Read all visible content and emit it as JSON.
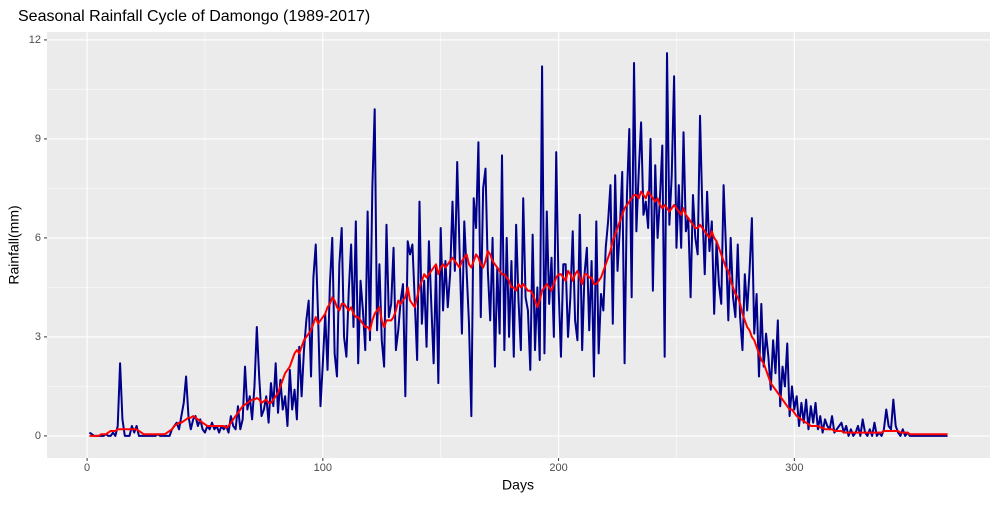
{
  "chart_data": {
    "type": "line",
    "title": "Seasonal Rainfall Cycle of Damongo (1989-2017)",
    "xlabel": "Days",
    "ylabel": "Rainfall(mm)",
    "xlim": [
      -17,
      383
    ],
    "ylim": [
      -0.67,
      12.24
    ],
    "xticks": [
      0,
      100,
      200,
      300
    ],
    "yticks": [
      0,
      3,
      6,
      9,
      12
    ],
    "grid": true,
    "x": [
      1,
      2,
      3,
      4,
      5,
      6,
      7,
      8,
      9,
      10,
      11,
      12,
      13,
      14,
      15,
      16,
      17,
      18,
      19,
      20,
      21,
      22,
      23,
      24,
      25,
      26,
      27,
      28,
      29,
      30,
      31,
      32,
      33,
      34,
      35,
      36,
      37,
      38,
      39,
      40,
      41,
      42,
      43,
      44,
      45,
      46,
      47,
      48,
      49,
      50,
      51,
      52,
      53,
      54,
      55,
      56,
      57,
      58,
      59,
      60,
      61,
      62,
      63,
      64,
      65,
      66,
      67,
      68,
      69,
      70,
      71,
      72,
      73,
      74,
      75,
      76,
      77,
      78,
      79,
      80,
      81,
      82,
      83,
      84,
      85,
      86,
      87,
      88,
      89,
      90,
      91,
      92,
      93,
      94,
      95,
      96,
      97,
      98,
      99,
      100,
      101,
      102,
      103,
      104,
      105,
      106,
      107,
      108,
      109,
      110,
      111,
      112,
      113,
      114,
      115,
      116,
      117,
      118,
      119,
      120,
      121,
      122,
      123,
      124,
      125,
      126,
      127,
      128,
      129,
      130,
      131,
      132,
      133,
      134,
      135,
      136,
      137,
      138,
      139,
      140,
      141,
      142,
      143,
      144,
      145,
      146,
      147,
      148,
      149,
      150,
      151,
      152,
      153,
      154,
      155,
      156,
      157,
      158,
      159,
      160,
      161,
      162,
      163,
      164,
      165,
      166,
      167,
      168,
      169,
      170,
      171,
      172,
      173,
      174,
      175,
      176,
      177,
      178,
      179,
      180,
      181,
      182,
      183,
      184,
      185,
      186,
      187,
      188,
      189,
      190,
      191,
      192,
      193,
      194,
      195,
      196,
      197,
      198,
      199,
      200,
      201,
      202,
      203,
      204,
      205,
      206,
      207,
      208,
      209,
      210,
      211,
      212,
      213,
      214,
      215,
      216,
      217,
      218,
      219,
      220,
      221,
      222,
      223,
      224,
      225,
      226,
      227,
      228,
      229,
      230,
      231,
      232,
      233,
      234,
      235,
      236,
      237,
      238,
      239,
      240,
      241,
      242,
      243,
      244,
      245,
      246,
      247,
      248,
      249,
      250,
      251,
      252,
      253,
      254,
      255,
      256,
      257,
      258,
      259,
      260,
      261,
      262,
      263,
      264,
      265,
      266,
      267,
      268,
      269,
      270,
      271,
      272,
      273,
      274,
      275,
      276,
      277,
      278,
      279,
      280,
      281,
      282,
      283,
      284,
      285,
      286,
      287,
      288,
      289,
      290,
      291,
      292,
      293,
      294,
      295,
      296,
      297,
      298,
      299,
      300,
      301,
      302,
      303,
      304,
      305,
      306,
      307,
      308,
      309,
      310,
      311,
      312,
      313,
      314,
      315,
      316,
      317,
      318,
      319,
      320,
      321,
      322,
      323,
      324,
      325,
      326,
      327,
      328,
      329,
      330,
      331,
      332,
      333,
      334,
      335,
      336,
      337,
      338,
      339,
      340,
      341,
      342,
      343,
      344,
      345,
      346,
      347,
      348,
      349,
      350,
      351,
      352,
      353,
      354,
      355,
      356,
      357,
      358,
      359,
      360,
      361,
      362,
      363,
      364,
      365
    ],
    "series": [
      {
        "color": "#00008B",
        "values": [
          0.1,
          0.05,
          0,
          0,
          0,
          0,
          0,
          0.05,
          0,
          0,
          0.1,
          0,
          0.3,
          2.2,
          0.5,
          0,
          0,
          0,
          0.3,
          0.1,
          0.3,
          0,
          0,
          0,
          0,
          0,
          0,
          0,
          0,
          0.05,
          0,
          0,
          0,
          0,
          0,
          0.2,
          0.3,
          0.4,
          0.2,
          0.6,
          1.0,
          1.8,
          0.6,
          0.2,
          0.5,
          0.6,
          0.3,
          0.5,
          0.2,
          0.1,
          0.3,
          0.2,
          0.4,
          0.2,
          0.3,
          0.1,
          0.3,
          0.2,
          0.3,
          0.1,
          0.6,
          0.3,
          0.2,
          0.9,
          0.2,
          0.5,
          2.1,
          0.8,
          1.2,
          0.5,
          1.5,
          3.3,
          1.8,
          0.6,
          0.8,
          1.2,
          0.4,
          1.6,
          0.9,
          2.2,
          0.7,
          1.7,
          0.8,
          1.2,
          0.3,
          2.0,
          0.8,
          1.4,
          0.5,
          2.7,
          1.2,
          2.6,
          3.5,
          4.1,
          1.8,
          4.8,
          5.8,
          3.6,
          0.9,
          2.2,
          3.7,
          2.0,
          4.6,
          6.0,
          2.5,
          1.8,
          5.2,
          6.3,
          3.0,
          2.4,
          4.4,
          5.8,
          3.3,
          6.5,
          2.2,
          4.7,
          3.8,
          2.6,
          6.8,
          2.9,
          7.5,
          9.9,
          3.2,
          5.2,
          2.9,
          2.1,
          6.4,
          3.6,
          4.0,
          5.7,
          2.6,
          3.2,
          4.1,
          4.6,
          1.2,
          5.9,
          5.5,
          5.8,
          4.1,
          2.3,
          7.1,
          3.4,
          4.7,
          2.7,
          5.9,
          4.0,
          2.2,
          5.1,
          1.6,
          6.3,
          3.8,
          5.3,
          3.9,
          4.9,
          7.1,
          5.0,
          8.3,
          5.6,
          3.1,
          6.5,
          5.0,
          3.4,
          0.6,
          7.2,
          6.3,
          8.9,
          3.6,
          7.5,
          8.1,
          5.0,
          3.5,
          6.0,
          2.1,
          5.1,
          3.1,
          8.5,
          2.6,
          6.0,
          3.0,
          5.3,
          2.4,
          6.4,
          4.1,
          2.6,
          7.2,
          4.2,
          3.8,
          2.0,
          6.1,
          2.6,
          4.5,
          2.3,
          11.2,
          2.5,
          6.8,
          4.0,
          5.4,
          3.0,
          8.6,
          4.5,
          2.4,
          5.2,
          5.2,
          3.0,
          4.2,
          6.2,
          3.5,
          2.9,
          6.7,
          2.6,
          4.9,
          5.7,
          3.2,
          5.3,
          1.8,
          6.5,
          2.5,
          4.3,
          3.8,
          5.7,
          6.5,
          7.6,
          3.4,
          7.9,
          5.0,
          6.3,
          8.0,
          2.2,
          7.3,
          9.3,
          4.2,
          11.3,
          6.2,
          8.0,
          9.5,
          6.7,
          7.1,
          6.3,
          9.0,
          4.4,
          8.2,
          6.0,
          7.2,
          8.8,
          2.4,
          11.6,
          6.4,
          7.9,
          10.9,
          5.7,
          7.6,
          5.7,
          9.2,
          6.2,
          6.6,
          4.2,
          7.3,
          6.0,
          5.5,
          9.7,
          6.8,
          4.9,
          7.4,
          5.6,
          6.5,
          3.7,
          5.9,
          4.6,
          4.0,
          7.6,
          5.7,
          3.5,
          6.0,
          4.2,
          3.6,
          5.8,
          3.6,
          2.6,
          4.9,
          3.8,
          5.0,
          6.6,
          3.1,
          4.3,
          1.8,
          4.0,
          2.1,
          3.1,
          2.4,
          1.4,
          2.9,
          1.9,
          3.5,
          0.9,
          2.1,
          1.5,
          2.8,
          0.6,
          1.5,
          0.8,
          1.2,
          0.3,
          1.0,
          0.4,
          1.1,
          0.2,
          0.9,
          0.4,
          1.0,
          0.2,
          0.6,
          0.1,
          0.5,
          0.3,
          0.2,
          0.6,
          0.1,
          0.2,
          0.3,
          0.4,
          0.1,
          0.3,
          0,
          0.2,
          0,
          0.1,
          0.3,
          0,
          0.5,
          0.1,
          0,
          0.2,
          0,
          0.4,
          0,
          0.1,
          0,
          0.2,
          0.8,
          0.3,
          0.2,
          1.1,
          0.3,
          0.1,
          0,
          0.2,
          0,
          0.1,
          0,
          0,
          0,
          0,
          0,
          0,
          0,
          0,
          0,
          0,
          0,
          0,
          0,
          0,
          0,
          0,
          0
        ]
      },
      {
        "color": "#FF0000",
        "values": [
          0,
          0,
          0,
          0,
          0,
          0.05,
          0.05,
          0.05,
          0.1,
          0.15,
          0.15,
          0.15,
          0.2,
          0.2,
          0.2,
          0.2,
          0.2,
          0.2,
          0.2,
          0.2,
          0.2,
          0.15,
          0.1,
          0.05,
          0.05,
          0.05,
          0.05,
          0.05,
          0.05,
          0.05,
          0.05,
          0.05,
          0.05,
          0.1,
          0.15,
          0.2,
          0.3,
          0.35,
          0.4,
          0.4,
          0.45,
          0.5,
          0.55,
          0.55,
          0.6,
          0.55,
          0.5,
          0.45,
          0.4,
          0.35,
          0.3,
          0.3,
          0.3,
          0.3,
          0.3,
          0.3,
          0.3,
          0.3,
          0.25,
          0.3,
          0.4,
          0.5,
          0.6,
          0.7,
          0.8,
          0.9,
          0.95,
          1.0,
          1.05,
          1.1,
          1.1,
          1.15,
          1.1,
          1.0,
          1.05,
          1.1,
          1.0,
          1.0,
          1.1,
          1.2,
          1.3,
          1.5,
          1.7,
          1.9,
          2.0,
          2.1,
          2.3,
          2.5,
          2.6,
          2.5,
          2.7,
          2.9,
          3.0,
          3.1,
          3.2,
          3.4,
          3.6,
          3.4,
          3.5,
          3.6,
          3.7,
          3.9,
          4.0,
          4.2,
          4.1,
          3.9,
          3.8,
          4.0,
          4.0,
          3.9,
          3.8,
          3.9,
          3.7,
          3.6,
          3.6,
          3.5,
          3.4,
          3.3,
          3.3,
          3.2,
          3.5,
          3.7,
          3.8,
          3.9,
          3.5,
          3.3,
          3.5,
          3.5,
          3.5,
          3.6,
          3.8,
          4.1,
          4.0,
          4.1,
          4.2,
          4.5,
          4.1,
          4.0,
          3.9,
          4.2,
          4.5,
          4.7,
          4.9,
          4.8,
          4.9,
          5.0,
          5.1,
          5.2,
          4.9,
          5.1,
          5.2,
          5.1,
          5.2,
          5.3,
          5.4,
          5.3,
          5.2,
          5.1,
          5.3,
          5.4,
          5.5,
          5.2,
          5.1,
          5.3,
          5.5,
          5.4,
          5.2,
          5.1,
          5.3,
          5.6,
          5.5,
          5.3,
          5.2,
          5.1,
          5.0,
          4.9,
          4.9,
          4.8,
          4.7,
          4.5,
          4.5,
          4.4,
          4.6,
          4.5,
          4.6,
          4.5,
          4.4,
          4.4,
          4.3,
          4.1,
          3.9,
          4.1,
          4.4,
          4.5,
          4.6,
          4.5,
          4.4,
          4.6,
          4.8,
          4.9,
          4.9,
          4.8,
          4.7,
          5.0,
          4.9,
          4.7,
          4.9,
          5.0,
          4.8,
          4.6,
          4.9,
          4.9,
          4.8,
          4.8,
          4.6,
          4.6,
          4.7,
          4.8,
          5.0,
          5.2,
          5.4,
          5.6,
          5.9,
          6.1,
          6.3,
          6.5,
          6.7,
          6.9,
          7.0,
          7.1,
          7.2,
          7.3,
          7.3,
          7.2,
          7.4,
          7.3,
          7.2,
          7.4,
          7.3,
          7.2,
          7.1,
          7.2,
          7.0,
          6.9,
          7.0,
          6.9,
          6.8,
          6.9,
          7.0,
          6.9,
          6.8,
          6.7,
          6.9,
          6.7,
          6.6,
          6.5,
          6.4,
          6.3,
          6.3,
          6.4,
          6.3,
          6.2,
          6.1,
          6.0,
          6.2,
          6.0,
          5.9,
          5.7,
          5.5,
          5.3,
          5.1,
          5.0,
          4.7,
          4.5,
          4.3,
          4.2,
          4.0,
          3.7,
          3.5,
          3.3,
          3.2,
          3.0,
          2.9,
          2.7,
          2.5,
          2.3,
          2.2,
          2.0,
          1.8,
          1.6,
          1.5,
          1.4,
          1.3,
          1.2,
          1.1,
          1.0,
          0.9,
          0.8,
          0.8,
          0.7,
          0.6,
          0.55,
          0.5,
          0.45,
          0.4,
          0.35,
          0.3,
          0.3,
          0.3,
          0.3,
          0.25,
          0.25,
          0.2,
          0.2,
          0.2,
          0.2,
          0.15,
          0.15,
          0.15,
          0.15,
          0.1,
          0.1,
          0.1,
          0.1,
          0.1,
          0.1,
          0.1,
          0.1,
          0.1,
          0.1,
          0.1,
          0.1,
          0.1,
          0.1,
          0.1,
          0.1,
          0.1,
          0.15,
          0.15,
          0.15,
          0.15,
          0.15,
          0.15,
          0.15,
          0.1,
          0.1,
          0.1,
          0.1,
          0.05,
          0.05,
          0.05,
          0.05,
          0.05,
          0.05,
          0.05,
          0.05,
          0.05,
          0.05,
          0.05,
          0.05,
          0.05,
          0.05,
          0.05,
          0.05,
          0.05
        ]
      }
    ]
  }
}
